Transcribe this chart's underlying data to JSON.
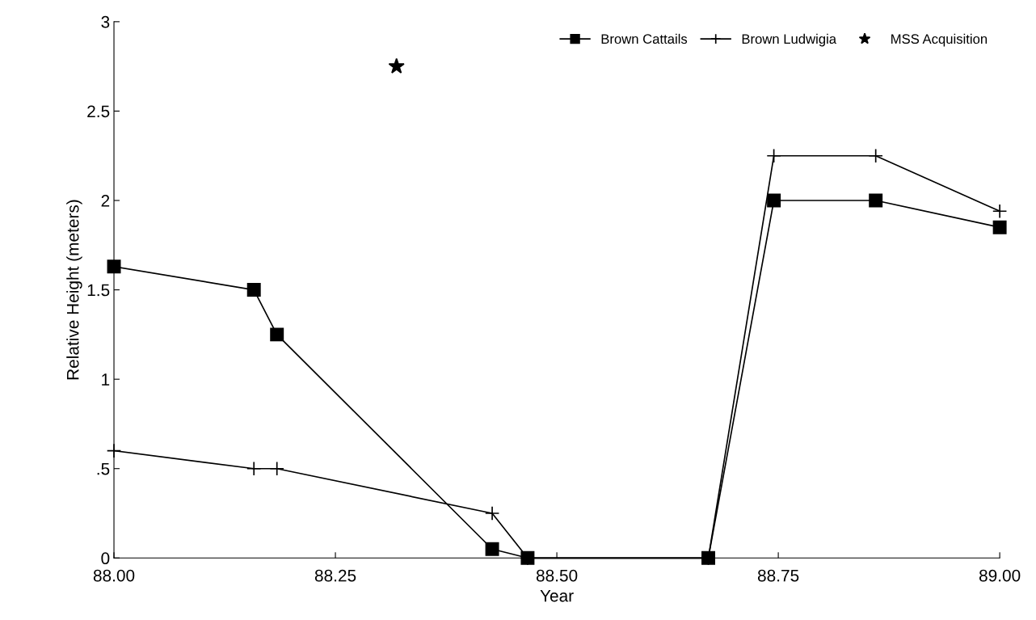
{
  "chart_data": {
    "type": "line",
    "xlabel": "Year",
    "ylabel": "Relative Height (meters)",
    "xlim": [
      88.0,
      89.0
    ],
    "xticks": [
      {
        "value": 88.0,
        "label": "88.00"
      },
      {
        "value": 88.25,
        "label": "88.25"
      },
      {
        "value": 88.5,
        "label": "88.50"
      },
      {
        "value": 88.75,
        "label": "88.75"
      },
      {
        "value": 89.0,
        "label": "89.00"
      }
    ],
    "ylim": [
      0,
      3
    ],
    "yticks": [
      0,
      {
        "value": 0.5,
        "label": ".5"
      },
      1,
      1.5,
      2,
      2.5,
      3
    ],
    "grid": false,
    "legend": "top right",
    "series": [
      {
        "name": "Brown Cattails",
        "color": "#000000",
        "marker": "square",
        "x": [
          88.0,
          88.158,
          88.184,
          88.427,
          88.467,
          88.671,
          88.745,
          88.86,
          89.0
        ],
        "values": [
          1.63,
          1.5,
          1.25,
          0.05,
          0,
          0,
          2.0,
          2.0,
          1.85
        ]
      },
      {
        "name": "Brown Ludwigia",
        "color": "#000000",
        "marker": "cross",
        "x": [
          88.0,
          88.158,
          88.184,
          88.427,
          88.467,
          88.671,
          88.745,
          88.86,
          89.0
        ],
        "values": [
          0.6,
          0.5,
          0.5,
          0.25,
          0,
          0,
          2.25,
          2.25,
          1.94
        ]
      },
      {
        "name": "MSS Acquisition",
        "color": "#000000",
        "marker": "star",
        "type": "scatter",
        "x": [
          88.319
        ],
        "values": [
          2.75
        ]
      }
    ]
  }
}
